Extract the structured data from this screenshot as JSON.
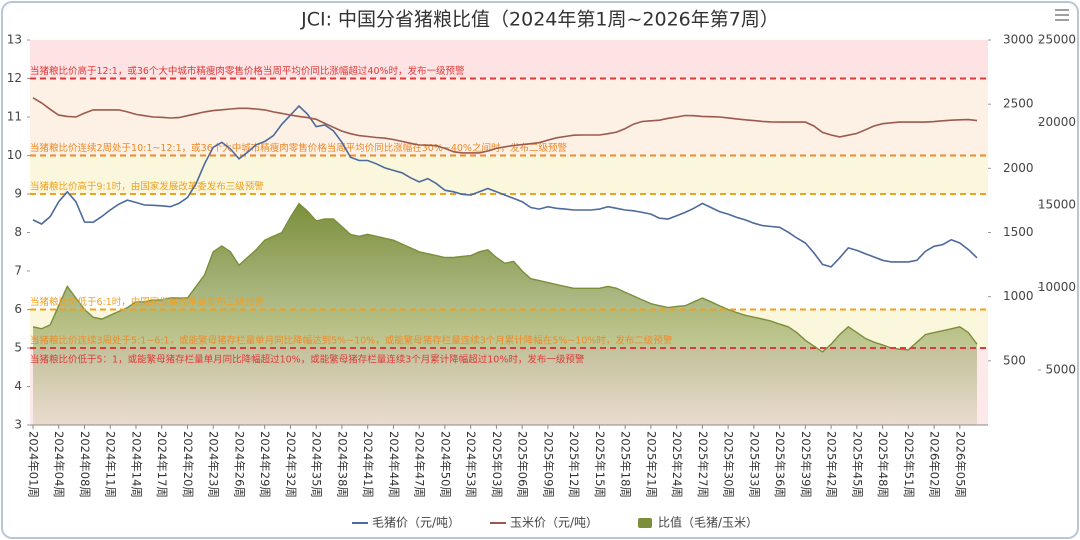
{
  "chart_data": {
    "type": "line",
    "title": "JCI: 中国分省猪粮比值（2024年第1周~2026年第7周）",
    "categories": [
      "2024年01周",
      null,
      null,
      "2024年04周",
      null,
      null,
      "2024年08周",
      null,
      null,
      "2024年11周",
      null,
      null,
      "2024年14周",
      null,
      null,
      "2024年17周",
      null,
      null,
      "2024年20周",
      null,
      null,
      "2024年23周",
      null,
      null,
      "2024年26周",
      null,
      null,
      "2024年29周",
      null,
      null,
      "2024年32周",
      null,
      null,
      "2024年35周",
      null,
      null,
      "2024年38周",
      null,
      null,
      "2024年41周",
      null,
      null,
      "2024年44周",
      null,
      null,
      "2024年47周",
      null,
      null,
      "2024年50周",
      null,
      null,
      "2024年53周",
      null,
      null,
      "2025年03周",
      null,
      null,
      "2025年06周",
      null,
      null,
      "2025年09周",
      null,
      null,
      "2025年12周",
      null,
      null,
      "2025年15周",
      null,
      null,
      "2025年18周",
      null,
      null,
      "2025年21周",
      null,
      null,
      "2025年24周",
      null,
      null,
      "2025年27周",
      null,
      null,
      "2025年30周",
      null,
      null,
      "2025年33周",
      null,
      null,
      "2025年36周",
      null,
      null,
      "2025年39周",
      null,
      null,
      "2025年42周",
      null,
      null,
      "2025年45周",
      null,
      null,
      "2025年48周",
      null,
      null,
      "2025年51周",
      null,
      null,
      "2026年02周",
      null,
      null,
      "2026年05周",
      null,
      null
    ],
    "series": [
      {
        "name": "毛猪价（元/吨）",
        "type": "line",
        "axis": "y3",
        "color": "#4d6a9c",
        "values": [
          14100,
          13850,
          14300,
          15200,
          15800,
          15200,
          13970,
          13950,
          14300,
          14700,
          15050,
          15300,
          15150,
          15000,
          14980,
          14950,
          14900,
          15100,
          15450,
          16300,
          17500,
          18500,
          18800,
          18400,
          17800,
          18200,
          18650,
          18850,
          19200,
          19900,
          20450,
          21000,
          20500,
          19750,
          19850,
          19500,
          18800,
          17900,
          17700,
          17700,
          17500,
          17250,
          17100,
          16950,
          16650,
          16400,
          16600,
          16300,
          15900,
          15800,
          15650,
          15600,
          15800,
          16000,
          15800,
          15600,
          15400,
          15200,
          14850,
          14750,
          14900,
          14800,
          14750,
          14700,
          14700,
          14700,
          14750,
          14900,
          14800,
          14700,
          14650,
          14550,
          14450,
          14200,
          14150,
          14350,
          14550,
          14800,
          15100,
          14850,
          14600,
          14450,
          14250,
          14100,
          13900,
          13750,
          13700,
          13650,
          13350,
          13000,
          12700,
          12100,
          11400,
          11250,
          11800,
          12400,
          12250,
          12050,
          11850,
          11650,
          11550,
          11550,
          11550,
          11650,
          12200,
          12500,
          12600,
          12900,
          12700,
          12300,
          11800
        ]
      },
      {
        "name": "玉米价（元/吨）",
        "type": "line",
        "axis": "y2",
        "color": "#9c5a4c",
        "values": [
          2550,
          2510,
          2460,
          2415,
          2405,
          2400,
          2430,
          2455,
          2455,
          2455,
          2455,
          2440,
          2420,
          2410,
          2400,
          2398,
          2392,
          2395,
          2410,
          2425,
          2440,
          2450,
          2456,
          2462,
          2468,
          2468,
          2462,
          2455,
          2440,
          2428,
          2415,
          2405,
          2395,
          2382,
          2350,
          2320,
          2290,
          2270,
          2255,
          2248,
          2240,
          2235,
          2225,
          2210,
          2195,
          2182,
          2180,
          2176,
          2155,
          2130,
          2120,
          2120,
          2120,
          2135,
          2155,
          2168,
          2178,
          2185,
          2192,
          2200,
          2220,
          2238,
          2248,
          2258,
          2260,
          2260,
          2260,
          2270,
          2282,
          2310,
          2345,
          2365,
          2370,
          2375,
          2390,
          2400,
          2412,
          2410,
          2405,
          2402,
          2400,
          2393,
          2385,
          2378,
          2372,
          2366,
          2362,
          2360,
          2360,
          2360,
          2360,
          2330,
          2280,
          2260,
          2245,
          2258,
          2272,
          2300,
          2330,
          2348,
          2355,
          2360,
          2360,
          2360,
          2360,
          2364,
          2370,
          2375,
          2378,
          2380,
          2372
        ]
      },
      {
        "name": "比值（毛猪/玉米）",
        "type": "area",
        "axis": "y",
        "color": "#7b8f3a",
        "values": [
          5.55,
          5.5,
          5.6,
          6.1,
          6.6,
          6.3,
          6.0,
          5.8,
          5.75,
          5.85,
          5.95,
          6.05,
          6.2,
          6.2,
          6.25,
          6.25,
          6.3,
          6.3,
          6.3,
          6.6,
          6.9,
          7.5,
          7.65,
          7.5,
          7.15,
          7.35,
          7.55,
          7.8,
          7.9,
          8.0,
          8.4,
          8.75,
          8.55,
          8.3,
          8.35,
          8.35,
          8.15,
          7.95,
          7.9,
          7.95,
          7.9,
          7.85,
          7.8,
          7.7,
          7.6,
          7.5,
          7.45,
          7.4,
          7.35,
          7.35,
          7.38,
          7.4,
          7.5,
          7.55,
          7.35,
          7.2,
          7.25,
          7.0,
          6.8,
          6.75,
          6.7,
          6.65,
          6.6,
          6.55,
          6.55,
          6.55,
          6.55,
          6.6,
          6.55,
          6.45,
          6.35,
          6.25,
          6.15,
          6.1,
          6.05,
          6.08,
          6.1,
          6.2,
          6.3,
          6.2,
          6.1,
          6.0,
          5.92,
          5.85,
          5.8,
          5.75,
          5.7,
          5.62,
          5.55,
          5.4,
          5.2,
          5.05,
          4.9,
          5.1,
          5.35,
          5.55,
          5.4,
          5.25,
          5.15,
          5.08,
          5.0,
          4.97,
          4.95,
          5.15,
          5.35,
          5.4,
          5.45,
          5.5,
          5.55,
          5.4,
          5.1
        ]
      }
    ],
    "ylim": [
      3,
      13
    ],
    "yticks": [
      3,
      4,
      5,
      6,
      7,
      8,
      9,
      10,
      11,
      12,
      13
    ],
    "y2lim": [
      0,
      3000
    ],
    "y2ticks": [
      500,
      1000,
      1500,
      2000,
      2500,
      3000
    ],
    "y3lim": [
      1667,
      25000
    ],
    "y3ticks": [
      5000,
      10000,
      15000,
      20000,
      25000
    ],
    "bands": [
      {
        "from": 12,
        "to": 13,
        "color": "#fde3e3"
      },
      {
        "from": 10,
        "to": 12,
        "color": "#fdf0e4"
      },
      {
        "from": 9,
        "to": 10,
        "color": "#fbf7dc"
      },
      {
        "from": 5,
        "to": 6,
        "color": "#fbf7dc"
      },
      {
        "from": 3,
        "to": 5,
        "color": "#fde9e9"
      }
    ],
    "mark_lines": [
      {
        "value": 12,
        "color": "#e03a3a",
        "side": "above",
        "label": "当猪粮比价高于12:1，或36个大中城市精瘦肉零售价格当周平均价同比涨幅超过40%时，发布一级预警"
      },
      {
        "value": 10,
        "color": "#ee8a2a",
        "side": "above",
        "label": "当猪粮比价连续2周处于10:1~12:1，或36个大中城市精瘦肉零售价格当周平均价同比涨幅在30%~40%之间时，发布二级预警"
      },
      {
        "value": 9,
        "color": "#f0a020",
        "side": "above",
        "label": "当猪粮比价高于9:1时，由国家发展改革委发布三级预警"
      },
      {
        "value": 6,
        "color": "#f0a020",
        "side": "above",
        "label": "当猪粮比价低于6:1时，由国家发展改革委发布三级预警"
      },
      {
        "value": 5,
        "color": "#ee8a2a",
        "side": "above",
        "label": "当猪粮比价连续3周处于5:1~6:1，或能繁母猪存栏量单月同比降幅达到5%~10%，或能繁母猪存栏量连续3个月累计降幅在5%~10%时，发布二级预警"
      },
      {
        "value": 5,
        "color": "#e03a3a",
        "side": "below",
        "label": "当猪粮比价低于5：1，或能繁母猪存栏量单月同比降幅超过10%，或能繁母猪存栏量连续3个月累计降幅超过10%时，发布一级预警"
      }
    ]
  }
}
